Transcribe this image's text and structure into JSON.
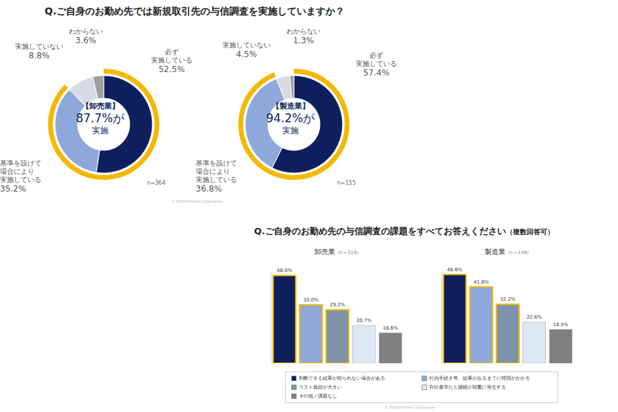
{
  "chart_data": [
    {
      "type": "pie",
      "question": "Q.ご自身のお勤め先では新規取引先の与信調査を実施していますか？",
      "center_label": [
        "【卸売業】",
        "87.7%が",
        "実施"
      ],
      "note": "n=364",
      "categories": [
        "必ず\n実施している",
        "基準を設けて\n場合により\n実施している",
        "実施していない",
        "わからない"
      ],
      "values": [
        52.5,
        35.2,
        8.8,
        3.6
      ],
      "value_labels": [
        "52.5%",
        "35.2%",
        "8.8%",
        "3.6%"
      ],
      "colors": [
        "#0d1f5c",
        "#8fa8dc",
        "#d5dbe4",
        "#9e9e9e"
      ],
      "data_labels": true
    },
    {
      "type": "pie",
      "center_label": [
        "【製造業】",
        "94.2%が",
        "実施"
      ],
      "note": "n=155",
      "source": "© 2024 Infomart Corporation",
      "categories": [
        "必ず\n実施している",
        "基準を設けて\n場合により\n実施している",
        "実施していない",
        "わからない"
      ],
      "values": [
        57.4,
        36.8,
        4.5,
        1.3
      ],
      "value_labels": [
        "57.4%",
        "36.8%",
        "4.5%",
        "1.3%"
      ],
      "colors": [
        "#0d1f5c",
        "#8fa8dc",
        "#d5dbe4",
        "#9e9e9e"
      ],
      "data_labels": true
    },
    {
      "type": "bar",
      "question": "Q.ご自身のお勤め先の与信調査の課題をすべてお答えください",
      "question_note": "（複数回答可）",
      "title": "卸売業",
      "subtitle": "（n＝319）",
      "categories": [
        "判断できる結果が得られない場合がある",
        "社内手続き等、結果が出るまでに時間がかかる",
        "コスト負担が大きい",
        "自社基準だと謝絶が頻繁に発生する",
        "その他／課題なし"
      ],
      "values": [
        48.0,
        32.0,
        29.2,
        20.7,
        16.6
      ],
      "value_labels": [
        "48.0%",
        "32.0%",
        "29.2%",
        "20.7%",
        "16.6%"
      ],
      "colors": [
        "#0d1f5c",
        "#8fa8dc",
        "#7f93ad",
        "#dce8f5",
        "#808080"
      ],
      "ylim": [
        0,
        50
      ],
      "data_labels": true,
      "tick_labels": false,
      "legend": "bottom"
    },
    {
      "type": "bar",
      "title": "製造業",
      "subtitle": "（n＝146）",
      "source": "© 2024 Infomart Corporation",
      "categories": [
        "判断できる結果が得られない場合がある",
        "社内手続き等、結果が出るまでに時間がかかる",
        "コスト負担が大きい",
        "自社基準だと謝絶が頻繁に発生する",
        "その他／課題なし"
      ],
      "values": [
        48.6,
        41.8,
        32.2,
        22.6,
        18.5
      ],
      "value_labels": [
        "48.6%",
        "41.8%",
        "32.2%",
        "22.6%",
        "18.5%"
      ],
      "colors": [
        "#0d1f5c",
        "#8fa8dc",
        "#7f93ad",
        "#dce8f5",
        "#808080"
      ],
      "ylim": [
        0,
        50
      ],
      "data_labels": true,
      "tick_labels": false
    }
  ]
}
